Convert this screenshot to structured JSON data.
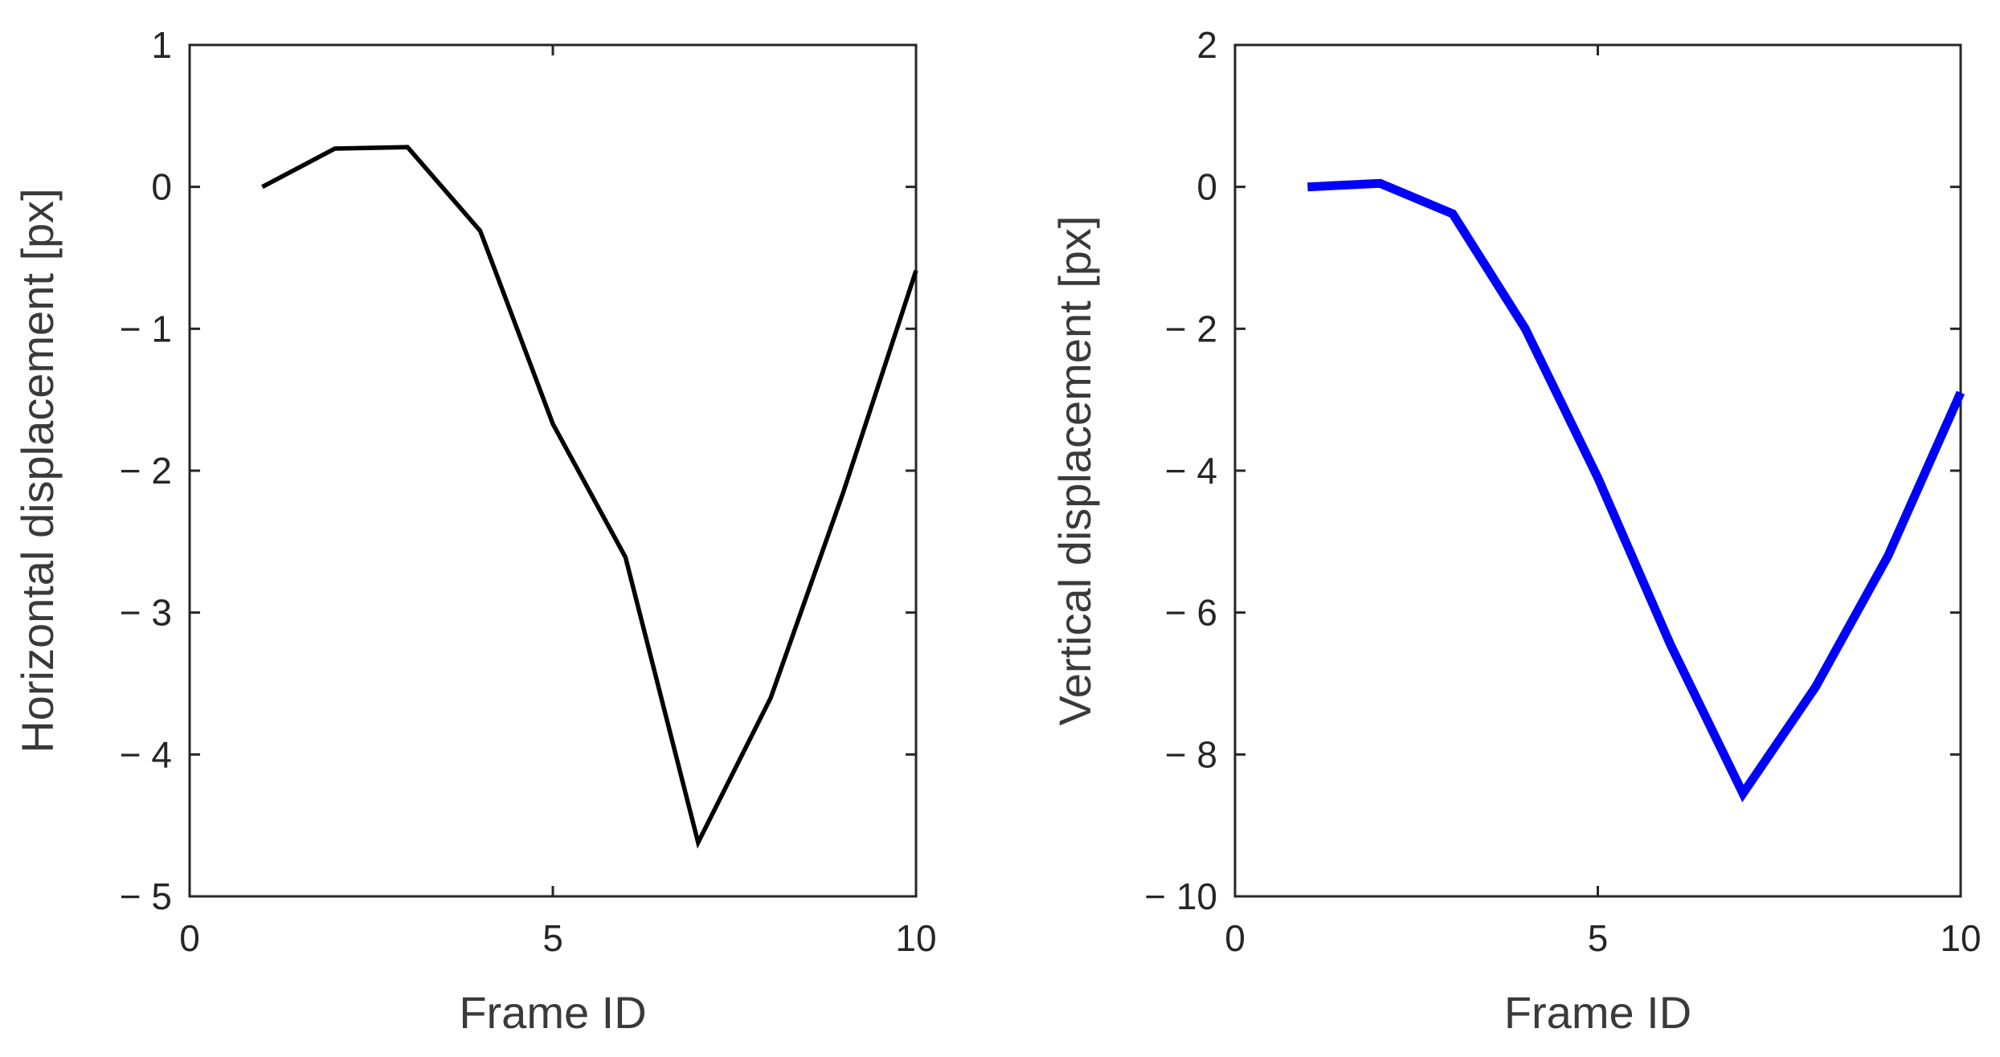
{
  "chart_data": [
    {
      "type": "line",
      "xlabel": "Frame ID",
      "ylabel": "Horizontal displacement [px]",
      "xlim": [
        0,
        10
      ],
      "ylim": [
        -5,
        1
      ],
      "xticks": [
        0,
        5,
        10
      ],
      "xtick_labels": [
        "0",
        "5",
        "10"
      ],
      "yticks": [
        1,
        0,
        -1,
        -2,
        -3,
        -4,
        -5
      ],
      "ytick_labels": [
        "1",
        "0",
        "− 1",
        "− 2",
        "− 3",
        "− 4",
        "− 5"
      ],
      "grid": false,
      "series": [
        {
          "color": "#000000",
          "x": [
            1,
            2,
            3,
            4,
            5,
            6,
            7,
            8,
            9,
            10
          ],
          "y": [
            0.0,
            0.27,
            0.28,
            -0.31,
            -1.67,
            -2.61,
            -4.62,
            -3.6,
            -2.15,
            -0.59
          ]
        }
      ]
    },
    {
      "type": "line",
      "xlabel": "Frame ID",
      "ylabel": "Vertical displacement [px]",
      "xlim": [
        0,
        10
      ],
      "ylim": [
        -10,
        2
      ],
      "xticks": [
        0,
        5,
        10
      ],
      "xtick_labels": [
        "0",
        "5",
        "10"
      ],
      "yticks": [
        2,
        0,
        -2,
        -4,
        -6,
        -8,
        -10
      ],
      "ytick_labels": [
        "2",
        "0",
        "− 2",
        "− 4",
        "− 6",
        "− 8",
        "− 10"
      ],
      "grid": false,
      "series": [
        {
          "color": "#0000ff",
          "x": [
            1,
            2,
            3,
            4,
            5,
            6,
            7,
            8,
            9,
            10
          ],
          "y": [
            0.0,
            0.05,
            -0.38,
            -2.0,
            -4.1,
            -6.45,
            -8.55,
            -7.05,
            -5.2,
            -2.9
          ]
        }
      ]
    }
  ]
}
